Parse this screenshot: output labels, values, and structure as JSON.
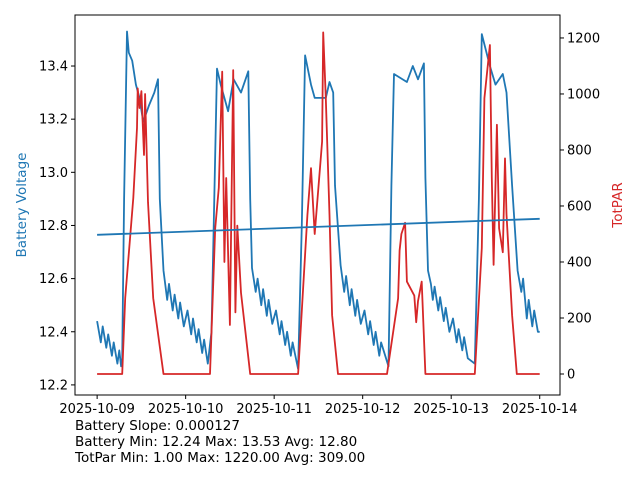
{
  "chart_data": {
    "type": "line",
    "xlabel": "",
    "ylabel_left": "Battery Voltage",
    "ylabel_right": "TotPAR",
    "xlim": [
      "2025-10-08 18:00",
      "2025-10-14 05:30"
    ],
    "ylim_left": [
      12.162,
      13.592
    ],
    "ylim_right": [
      -75,
      1282
    ],
    "x_ticks": [
      "2025-10-09",
      "2025-10-10",
      "2025-10-11",
      "2025-10-12",
      "2025-10-13",
      "2025-10-14"
    ],
    "y_ticks_left": [
      "12.2",
      "12.4",
      "12.6",
      "12.8",
      "13.0",
      "13.2",
      "13.4"
    ],
    "y_ticks_right": [
      "0",
      "200",
      "400",
      "600",
      "800",
      "1000",
      "1200"
    ],
    "grid": false,
    "colors": {
      "battery": "#1f77b4",
      "trend": "#1f77b4",
      "par": "#d62728"
    },
    "series": [
      {
        "axis": "left",
        "color": "#1f77b4",
        "points": [
          [
            "2025-10-09 00:00",
            12.44
          ],
          [
            "2025-10-09 01:00",
            12.36
          ],
          [
            "2025-10-09 01:30",
            12.42
          ],
          [
            "2025-10-09 02:30",
            12.34
          ],
          [
            "2025-10-09 03:00",
            12.39
          ],
          [
            "2025-10-09 04:00",
            12.31
          ],
          [
            "2025-10-09 04:30",
            12.36
          ],
          [
            "2025-10-09 05:30",
            12.28
          ],
          [
            "2025-10-09 06:00",
            12.33
          ],
          [
            "2025-10-09 06:30",
            12.27
          ],
          [
            "2025-10-09 06:48",
            12.3
          ],
          [
            "2025-10-09 07:18",
            12.9
          ],
          [
            "2025-10-09 08:06",
            13.53
          ],
          [
            "2025-10-09 08:36",
            13.45
          ],
          [
            "2025-10-09 09:30",
            13.42
          ],
          [
            "2025-10-09 10:30",
            13.33
          ],
          [
            "2025-10-09 11:30",
            13.28
          ],
          [
            "2025-10-09 12:30",
            13.19
          ],
          [
            "2025-10-09 14:00",
            13.25
          ],
          [
            "2025-10-09 15:30",
            13.3
          ],
          [
            "2025-10-09 16:30",
            13.35
          ],
          [
            "2025-10-09 17:00",
            12.9
          ],
          [
            "2025-10-09 18:00",
            12.63
          ],
          [
            "2025-10-09 19:00",
            12.52
          ],
          [
            "2025-10-09 19:30",
            12.58
          ],
          [
            "2025-10-09 20:30",
            12.48
          ],
          [
            "2025-10-09 21:00",
            12.54
          ],
          [
            "2025-10-09 22:00",
            12.45
          ],
          [
            "2025-10-09 22:30",
            12.51
          ],
          [
            "2025-10-09 23:30",
            12.42
          ],
          [
            "2025-10-10 00:30",
            12.48
          ],
          [
            "2025-10-10 01:30",
            12.39
          ],
          [
            "2025-10-10 02:00",
            12.45
          ],
          [
            "2025-10-10 03:00",
            12.36
          ],
          [
            "2025-10-10 03:30",
            12.41
          ],
          [
            "2025-10-10 04:30",
            12.32
          ],
          [
            "2025-10-10 05:00",
            12.37
          ],
          [
            "2025-10-10 06:00",
            12.28
          ],
          [
            "2025-10-10 07:00",
            12.4
          ],
          [
            "2025-10-10 08:30",
            13.39
          ],
          [
            "2025-10-10 09:30",
            13.33
          ],
          [
            "2025-10-10 11:30",
            13.23
          ],
          [
            "2025-10-10 13:00",
            13.35
          ],
          [
            "2025-10-10 15:00",
            13.3
          ],
          [
            "2025-10-10 17:00",
            13.38
          ],
          [
            "2025-10-10 17:30",
            12.9
          ],
          [
            "2025-10-10 18:00",
            12.64
          ],
          [
            "2025-10-10 19:00",
            12.55
          ],
          [
            "2025-10-10 19:30",
            12.6
          ],
          [
            "2025-10-10 20:30",
            12.5
          ],
          [
            "2025-10-10 21:00",
            12.56
          ],
          [
            "2025-10-10 22:00",
            12.46
          ],
          [
            "2025-10-10 22:30",
            12.52
          ],
          [
            "2025-10-10 23:30",
            12.43
          ],
          [
            "2025-10-11 00:30",
            12.48
          ],
          [
            "2025-10-11 01:30",
            12.39
          ],
          [
            "2025-10-11 02:00",
            12.44
          ],
          [
            "2025-10-11 03:00",
            12.35
          ],
          [
            "2025-10-11 03:30",
            12.4
          ],
          [
            "2025-10-11 04:30",
            12.31
          ],
          [
            "2025-10-11 05:00",
            12.36
          ],
          [
            "2025-10-11 06:30",
            12.26
          ],
          [
            "2025-10-11 07:30",
            12.8
          ],
          [
            "2025-10-11 08:24",
            13.44
          ],
          [
            "2025-10-11 10:00",
            13.33
          ],
          [
            "2025-10-11 11:00",
            13.28
          ],
          [
            "2025-10-11 14:00",
            13.28
          ],
          [
            "2025-10-11 15:00",
            13.34
          ],
          [
            "2025-10-11 16:00",
            13.3
          ],
          [
            "2025-10-11 16:30",
            12.95
          ],
          [
            "2025-10-11 18:00",
            12.65
          ],
          [
            "2025-10-11 19:00",
            12.55
          ],
          [
            "2025-10-11 19:30",
            12.61
          ],
          [
            "2025-10-11 20:30",
            12.5
          ],
          [
            "2025-10-11 21:00",
            12.56
          ],
          [
            "2025-10-11 22:00",
            12.46
          ],
          [
            "2025-10-11 22:30",
            12.52
          ],
          [
            "2025-10-11 23:30",
            12.43
          ],
          [
            "2025-10-12 00:30",
            12.48
          ],
          [
            "2025-10-12 01:30",
            12.39
          ],
          [
            "2025-10-12 02:00",
            12.44
          ],
          [
            "2025-10-12 03:00",
            12.35
          ],
          [
            "2025-10-12 03:30",
            12.4
          ],
          [
            "2025-10-12 04:30",
            12.31
          ],
          [
            "2025-10-12 05:00",
            12.36
          ],
          [
            "2025-10-12 07:00",
            12.27
          ],
          [
            "2025-10-12 07:48",
            12.95
          ],
          [
            "2025-10-12 08:30",
            13.37
          ],
          [
            "2025-10-12 12:00",
            13.34
          ],
          [
            "2025-10-12 13:36",
            13.4
          ],
          [
            "2025-10-12 15:00",
            13.35
          ],
          [
            "2025-10-12 16:36",
            13.41
          ],
          [
            "2025-10-12 17:00",
            12.98
          ],
          [
            "2025-10-12 17:42",
            12.63
          ],
          [
            "2025-10-12 18:30",
            12.58
          ],
          [
            "2025-10-12 19:00",
            12.52
          ],
          [
            "2025-10-12 19:30",
            12.57
          ],
          [
            "2025-10-12 20:30",
            12.48
          ],
          [
            "2025-10-12 21:00",
            12.53
          ],
          [
            "2025-10-12 22:00",
            12.44
          ],
          [
            "2025-10-12 22:30",
            12.49
          ],
          [
            "2025-10-12 23:30",
            12.4
          ],
          [
            "2025-10-13 00:30",
            12.45
          ],
          [
            "2025-10-13 01:30",
            12.36
          ],
          [
            "2025-10-13 02:00",
            12.41
          ],
          [
            "2025-10-13 03:00",
            12.33
          ],
          [
            "2025-10-13 03:30",
            12.38
          ],
          [
            "2025-10-13 04:30",
            12.3
          ],
          [
            "2025-10-13 06:24",
            12.28
          ],
          [
            "2025-10-13 07:30",
            12.9
          ],
          [
            "2025-10-13 08:18",
            13.52
          ],
          [
            "2025-10-13 10:30",
            13.4
          ],
          [
            "2025-10-13 12:00",
            13.33
          ],
          [
            "2025-10-13 14:00",
            13.37
          ],
          [
            "2025-10-13 15:00",
            13.3
          ],
          [
            "2025-10-13 16:30",
            12.95
          ],
          [
            "2025-10-13 18:00",
            12.63
          ],
          [
            "2025-10-13 19:00",
            12.55
          ],
          [
            "2025-10-13 19:30",
            12.6
          ],
          [
            "2025-10-13 20:30",
            12.45
          ],
          [
            "2025-10-13 21:00",
            12.52
          ],
          [
            "2025-10-13 22:00",
            12.42
          ],
          [
            "2025-10-13 22:30",
            12.48
          ],
          [
            "2025-10-13 23:30",
            12.4
          ],
          [
            "2025-10-14 00:00",
            12.4
          ]
        ]
      },
      {
        "axis": "left",
        "color": "#1f77b4",
        "points": [
          [
            "2025-10-09 00:00",
            12.765
          ],
          [
            "2025-10-14 00:00",
            12.825
          ]
        ]
      },
      {
        "axis": "right",
        "color": "#d62728",
        "points": [
          [
            "2025-10-09 00:00",
            0
          ],
          [
            "2025-10-09 06:48",
            0
          ],
          [
            "2025-10-09 07:36",
            271
          ],
          [
            "2025-10-09 09:48",
            629
          ],
          [
            "2025-10-09 10:48",
            879
          ],
          [
            "2025-10-09 11:00",
            1020
          ],
          [
            "2025-10-09 11:30",
            950
          ],
          [
            "2025-10-09 12:00",
            1010
          ],
          [
            "2025-10-09 12:42",
            782
          ],
          [
            "2025-10-09 13:00",
            1000
          ],
          [
            "2025-10-09 13:48",
            614
          ],
          [
            "2025-10-09 15:12",
            271
          ],
          [
            "2025-10-09 18:00",
            0
          ],
          [
            "2025-10-10 06:36",
            0
          ],
          [
            "2025-10-10 08:00",
            520
          ],
          [
            "2025-10-10 09:00",
            665
          ],
          [
            "2025-10-10 09:54",
            1080
          ],
          [
            "2025-10-10 10:30",
            400
          ],
          [
            "2025-10-10 11:00",
            700
          ],
          [
            "2025-10-10 12:00",
            175
          ],
          [
            "2025-10-10 12:54",
            1085
          ],
          [
            "2025-10-10 13:30",
            220
          ],
          [
            "2025-10-10 14:00",
            530
          ],
          [
            "2025-10-10 15:00",
            290
          ],
          [
            "2025-10-10 17:30",
            0
          ],
          [
            "2025-10-11 06:30",
            0
          ],
          [
            "2025-10-11 09:00",
            567
          ],
          [
            "2025-10-11 10:00",
            735
          ],
          [
            "2025-10-11 11:00",
            500
          ],
          [
            "2025-10-11 13:00",
            830
          ],
          [
            "2025-10-11 13:18",
            1220
          ],
          [
            "2025-10-11 14:00",
            985
          ],
          [
            "2025-10-11 15:00",
            568
          ],
          [
            "2025-10-11 15:42",
            210
          ],
          [
            "2025-10-11 17:18",
            0
          ],
          [
            "2025-10-12 06:36",
            0
          ],
          [
            "2025-10-12 09:36",
            270
          ],
          [
            "2025-10-12 10:00",
            441
          ],
          [
            "2025-10-12 10:30",
            500
          ],
          [
            "2025-10-12 11:30",
            540
          ],
          [
            "2025-10-12 12:00",
            330
          ],
          [
            "2025-10-12 14:00",
            280
          ],
          [
            "2025-10-12 14:30",
            185
          ],
          [
            "2025-10-12 15:00",
            260
          ],
          [
            "2025-10-12 16:00",
            330
          ],
          [
            "2025-10-12 17:00",
            0
          ],
          [
            "2025-10-13 06:24",
            0
          ],
          [
            "2025-10-13 08:18",
            450
          ],
          [
            "2025-10-13 09:00",
            985
          ],
          [
            "2025-10-13 10:30",
            1175
          ],
          [
            "2025-10-13 11:00",
            700
          ],
          [
            "2025-10-13 11:30",
            390
          ],
          [
            "2025-10-13 12:24",
            890
          ],
          [
            "2025-10-13 13:00",
            520
          ],
          [
            "2025-10-13 14:00",
            435
          ],
          [
            "2025-10-13 14:36",
            770
          ],
          [
            "2025-10-13 15:00",
            570
          ],
          [
            "2025-10-13 16:30",
            210
          ],
          [
            "2025-10-13 17:48",
            0
          ],
          [
            "2025-10-14 00:00",
            0
          ]
        ]
      }
    ],
    "annotations": [
      "Battery Slope: 0.000127",
      "Battery Min: 12.24 Max: 13.53 Avg: 12.80",
      "TotPar Min: 1.00 Max: 1220.00 Avg: 309.00"
    ]
  }
}
